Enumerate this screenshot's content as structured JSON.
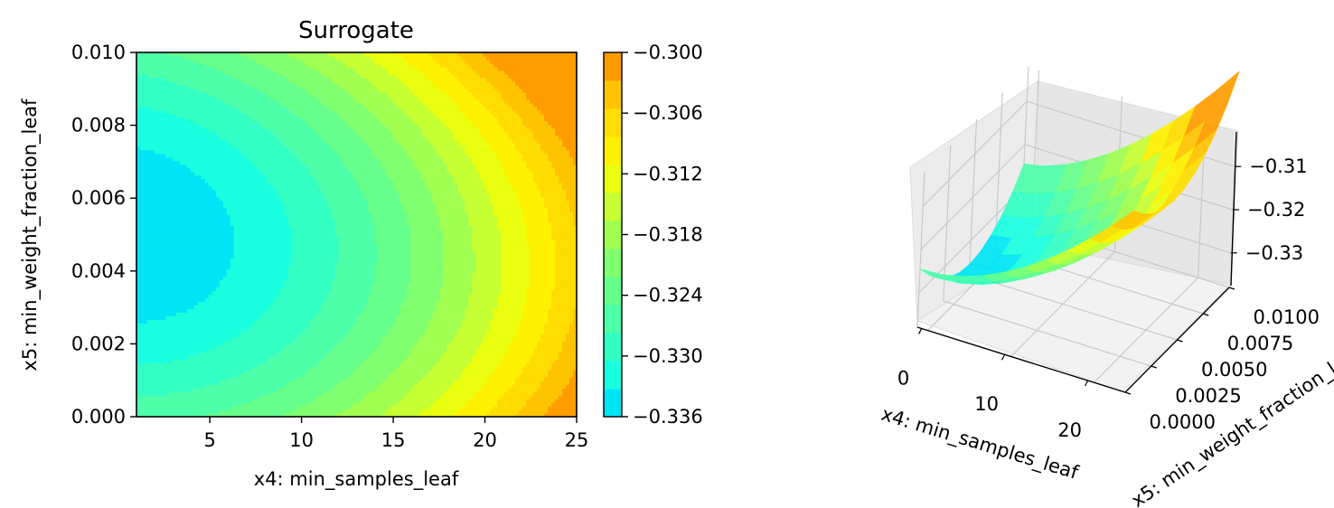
{
  "chart_data": [
    {
      "type": "heatmap",
      "title": "Surrogate",
      "xlabel": "x4: min_samples_leaf",
      "ylabel": "x5: min_weight_fraction_leaf",
      "xlim": [
        1,
        25
      ],
      "ylim": [
        0.0,
        0.01
      ],
      "x_ticks": [
        "5",
        "10",
        "15",
        "20",
        "25"
      ],
      "y_ticks": [
        "0.000",
        "0.002",
        "0.004",
        "0.006",
        "0.008",
        "0.010"
      ],
      "levels": [
        -0.336,
        -0.333,
        -0.33,
        -0.327,
        -0.324,
        -0.321,
        -0.318,
        -0.315,
        -0.312,
        -0.309,
        -0.306,
        -0.303,
        -0.3
      ],
      "colors": [
        "#00e5f5",
        "#1affe0",
        "#33ffc4",
        "#4dffa8",
        "#66ff8c",
        "#80ff70",
        "#a0ff50",
        "#c6ff33",
        "#eaff10",
        "#fff200",
        "#ffdd00",
        "#ffc400",
        "#ff9d00"
      ],
      "colorbar": {
        "ticks": [
          "−0.336",
          "−0.330",
          "−0.324",
          "−0.318",
          "−0.312",
          "−0.306",
          "−0.300"
        ]
      },
      "surface_model": {
        "minimum_at": {
          "x4": 1,
          "x5": 0.005
        },
        "minimum_value": -0.3355,
        "value_at_x4_25_x5_0.005": -0.3064,
        "value_at_x4_25_x5_0.01": -0.3025,
        "value_at_x4_1_x5_0.0": -0.3247
      }
    },
    {
      "type": "surface3d",
      "xlabel": "x4: min_samples_leaf",
      "ylabel": "x5: min_weight_fraction_leaf",
      "x_ticks": [
        "0",
        "10",
        "20"
      ],
      "y_ticks": [
        "0.0000",
        "0.0025",
        "0.0050",
        "0.0075",
        "0.0100"
      ],
      "z_ticks": [
        "−0.31",
        "−0.32",
        "−0.33"
      ]
    }
  ]
}
